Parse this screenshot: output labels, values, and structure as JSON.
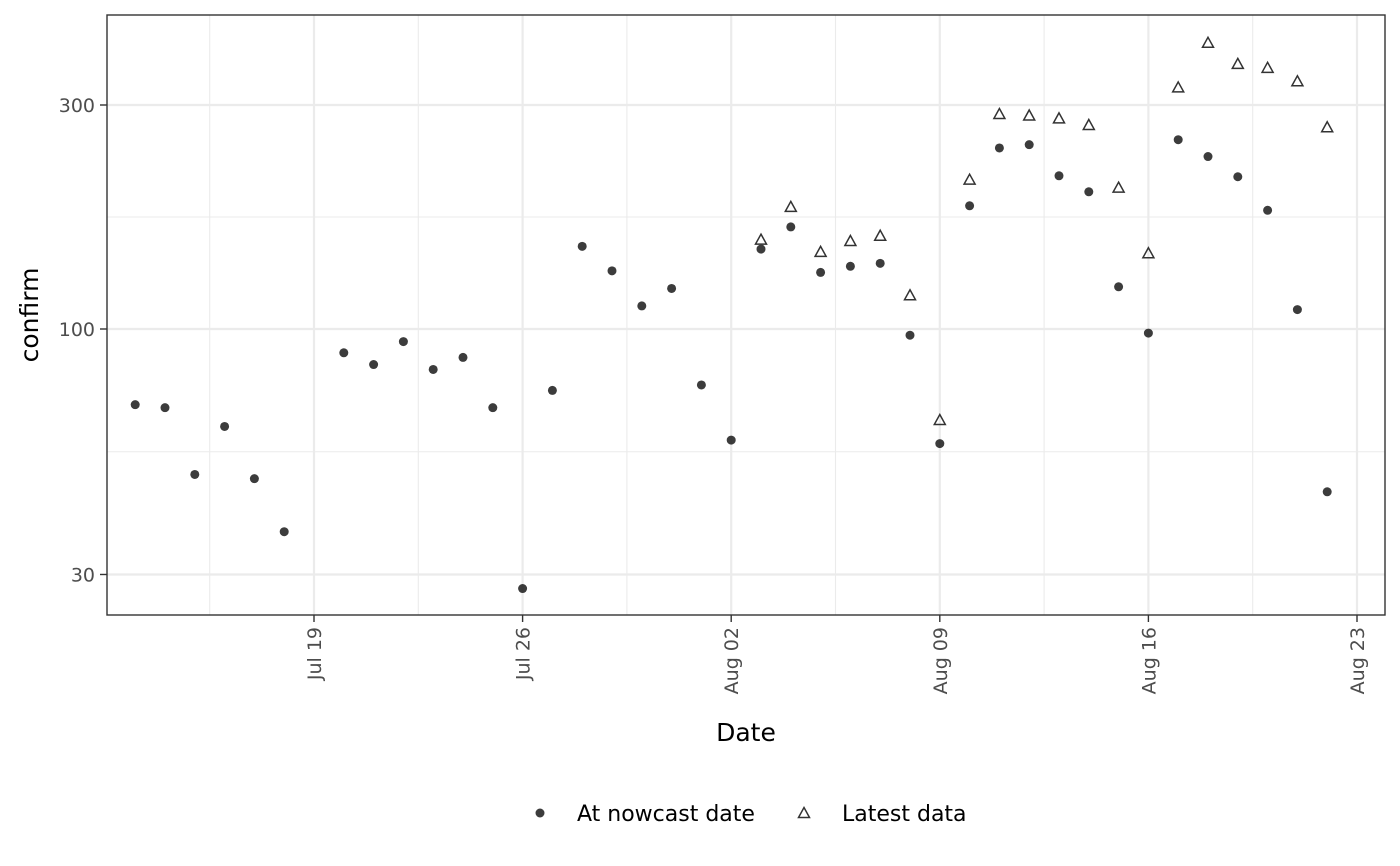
{
  "chart_data": {
    "type": "scatter",
    "xlabel": "Date",
    "ylabel": "confirm",
    "y_scale": "log",
    "ylim": [
      27,
      450
    ],
    "xlim": [
      "2025-07-12",
      "2025-08-23"
    ],
    "y_ticks": [
      30,
      100,
      300
    ],
    "y_tick_labels": [
      "30",
      "100",
      "300"
    ],
    "x_ticks": [
      "2025-07-19",
      "2025-07-26",
      "2025-08-02",
      "2025-08-09",
      "2025-08-16",
      "2025-08-23"
    ],
    "x_tick_labels": [
      "Jul 19",
      "Jul 26",
      "Aug 02",
      "Aug 09",
      "Aug 16",
      "Aug 23"
    ],
    "grid": true,
    "legend_position": "bottom",
    "series": [
      {
        "name": "At nowcast date",
        "marker": "circle",
        "color": "#1a1a1a",
        "points": [
          {
            "x": "2025-07-13",
            "y": 69
          },
          {
            "x": "2025-07-14",
            "y": 68
          },
          {
            "x": "2025-07-15",
            "y": 49
          },
          {
            "x": "2025-07-16",
            "y": 62
          },
          {
            "x": "2025-07-17",
            "y": 48
          },
          {
            "x": "2025-07-18",
            "y": 37
          },
          {
            "x": "2025-07-20",
            "y": 89
          },
          {
            "x": "2025-07-21",
            "y": 84
          },
          {
            "x": "2025-07-22",
            "y": 94
          },
          {
            "x": "2025-07-23",
            "y": 82
          },
          {
            "x": "2025-07-24",
            "y": 87
          },
          {
            "x": "2025-07-25",
            "y": 68
          },
          {
            "x": "2025-07-26",
            "y": 28
          },
          {
            "x": "2025-07-27",
            "y": 74
          },
          {
            "x": "2025-07-28",
            "y": 150
          },
          {
            "x": "2025-07-29",
            "y": 133
          },
          {
            "x": "2025-07-30",
            "y": 112
          },
          {
            "x": "2025-07-31",
            "y": 122
          },
          {
            "x": "2025-08-01",
            "y": 76
          },
          {
            "x": "2025-08-02",
            "y": 58
          },
          {
            "x": "2025-08-03",
            "y": 148
          },
          {
            "x": "2025-08-04",
            "y": 165
          },
          {
            "x": "2025-08-05",
            "y": 132
          },
          {
            "x": "2025-08-06",
            "y": 136
          },
          {
            "x": "2025-08-07",
            "y": 138
          },
          {
            "x": "2025-08-08",
            "y": 97
          },
          {
            "x": "2025-08-09",
            "y": 57
          },
          {
            "x": "2025-08-10",
            "y": 183
          },
          {
            "x": "2025-08-11",
            "y": 243
          },
          {
            "x": "2025-08-12",
            "y": 247
          },
          {
            "x": "2025-08-13",
            "y": 212
          },
          {
            "x": "2025-08-14",
            "y": 196
          },
          {
            "x": "2025-08-15",
            "y": 123
          },
          {
            "x": "2025-08-16",
            "y": 98
          },
          {
            "x": "2025-08-17",
            "y": 253
          },
          {
            "x": "2025-08-18",
            "y": 233
          },
          {
            "x": "2025-08-19",
            "y": 211
          },
          {
            "x": "2025-08-20",
            "y": 179
          },
          {
            "x": "2025-08-21",
            "y": 110
          },
          {
            "x": "2025-08-22",
            "y": 45
          }
        ]
      },
      {
        "name": "Latest data",
        "marker": "triangle-open",
        "color": "#333333",
        "points": [
          {
            "x": "2025-08-03",
            "y": 155
          },
          {
            "x": "2025-08-04",
            "y": 182
          },
          {
            "x": "2025-08-05",
            "y": 146
          },
          {
            "x": "2025-08-06",
            "y": 154
          },
          {
            "x": "2025-08-07",
            "y": 158
          },
          {
            "x": "2025-08-08",
            "y": 118
          },
          {
            "x": "2025-08-09",
            "y": 64
          },
          {
            "x": "2025-08-10",
            "y": 208
          },
          {
            "x": "2025-08-11",
            "y": 287
          },
          {
            "x": "2025-08-12",
            "y": 285
          },
          {
            "x": "2025-08-13",
            "y": 281
          },
          {
            "x": "2025-08-14",
            "y": 272
          },
          {
            "x": "2025-08-15",
            "y": 200
          },
          {
            "x": "2025-08-16",
            "y": 145
          },
          {
            "x": "2025-08-17",
            "y": 327
          },
          {
            "x": "2025-08-18",
            "y": 407
          },
          {
            "x": "2025-08-19",
            "y": 367
          },
          {
            "x": "2025-08-20",
            "y": 360
          },
          {
            "x": "2025-08-21",
            "y": 337
          },
          {
            "x": "2025-08-22",
            "y": 269
          }
        ]
      }
    ]
  }
}
